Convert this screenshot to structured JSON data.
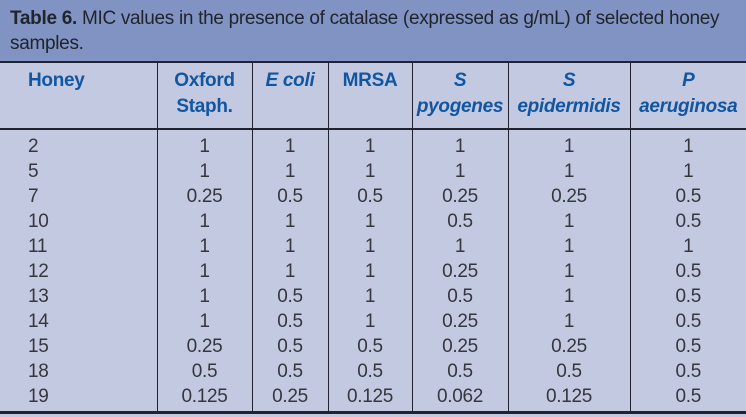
{
  "caption": {
    "label": "Table 6.",
    "text": "MIC values in the presence of catalase (expressed as g/mL) of selected honey samples."
  },
  "colors": {
    "caption_bg": "#8093c3",
    "table_bg": "#c3c9e1",
    "caption_text": "#20242c",
    "header_text": "#1156a3",
    "body_text": "#36363e",
    "rule": "#20222f"
  },
  "table": {
    "columns": [
      {
        "id": "honey",
        "label": "Honey",
        "lines": [
          "Honey"
        ],
        "italic": false
      },
      {
        "id": "oxford-staph",
        "label": "Oxford Staph.",
        "lines": [
          "Oxford",
          "Staph."
        ],
        "italic": false
      },
      {
        "id": "e-coli",
        "label": "E coli",
        "lines": [
          "E coli"
        ],
        "italic": true
      },
      {
        "id": "mrsa",
        "label": "MRSA",
        "lines": [
          "MRSA"
        ],
        "italic": false
      },
      {
        "id": "s-pyogenes",
        "label": "S pyogenes",
        "lines": [
          "S",
          "pyogenes"
        ],
        "italic": true
      },
      {
        "id": "s-epidermidis",
        "label": "S epidermidis",
        "lines": [
          "S",
          "epidermidis"
        ],
        "italic": true
      },
      {
        "id": "p-aeruginosa",
        "label": "P aeruginosa",
        "lines": [
          "P",
          "aeruginosa"
        ],
        "italic": true
      }
    ],
    "rows": [
      [
        "2",
        "1",
        "1",
        "1",
        "1",
        "1",
        "1"
      ],
      [
        "5",
        "1",
        "1",
        "1",
        "1",
        "1",
        "1"
      ],
      [
        "7",
        "0.25",
        "0.5",
        "0.5",
        "0.25",
        "0.25",
        "0.5"
      ],
      [
        "10",
        "1",
        "1",
        "1",
        "0.5",
        "1",
        "0.5"
      ],
      [
        "11",
        "1",
        "1",
        "1",
        "1",
        "1",
        "1"
      ],
      [
        "12",
        "1",
        "1",
        "1",
        "0.25",
        "1",
        "0.5"
      ],
      [
        "13",
        "1",
        "0.5",
        "1",
        "0.5",
        "1",
        "0.5"
      ],
      [
        "14",
        "1",
        "0.5",
        "1",
        "0.25",
        "1",
        "0.5"
      ],
      [
        "15",
        "0.25",
        "0.5",
        "0.5",
        "0.25",
        "0.25",
        "0.5"
      ],
      [
        "18",
        "0.5",
        "0.5",
        "0.5",
        "0.5",
        "0.5",
        "0.5"
      ],
      [
        "19",
        "0.125",
        "0.25",
        "0.125",
        "0.062",
        "0.125",
        "0.5"
      ]
    ]
  }
}
